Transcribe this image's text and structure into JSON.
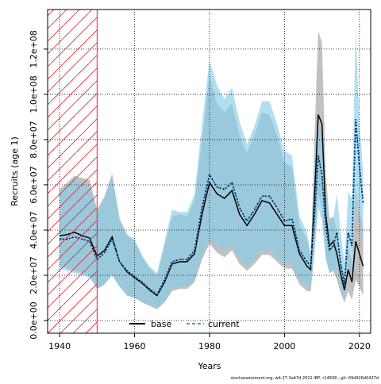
{
  "chart_data": {
    "type": "line",
    "x_label": "Years",
    "y_label": "Recruits (age 1)",
    "footnote": "stockassessment.org, wit.27.3a47d  2021 IBP, r14838 , git: 69d926d0437d",
    "x": [
      1940,
      1942,
      1944,
      1946,
      1948,
      1950,
      1952,
      1954,
      1956,
      1958,
      1960,
      1962,
      1964,
      1966,
      1968,
      1970,
      1972,
      1974,
      1976,
      1978,
      1980,
      1982,
      1984,
      1986,
      1988,
      1990,
      1992,
      1994,
      1996,
      1998,
      2000,
      2002,
      2004,
      2006,
      2007,
      2008,
      2009,
      2010,
      2011,
      2012,
      2013,
      2014,
      2015,
      2016,
      2017,
      2018,
      2019,
      2020,
      2021
    ],
    "xlim": [
      1936.8,
      2023
    ],
    "xticks": [
      1940,
      1960,
      1980,
      2000,
      2020
    ],
    "ylim": [
      -5600000.0,
      137500000.0
    ],
    "yticks": [
      {
        "value": 0,
        "label": "0.0e+00"
      },
      {
        "value": 20000000.0,
        "label": "2.0e+07"
      },
      {
        "value": 40000000.0,
        "label": "4.0e+07"
      },
      {
        "value": 60000000.0,
        "label": "6.0e+07"
      },
      {
        "value": 80000000.0,
        "label": "8.0e+07"
      },
      {
        "value": 100000000.0,
        "label": "1.0e+08"
      },
      {
        "value": 120000000.0,
        "label": "1.2e+08"
      }
    ],
    "grid": true,
    "highlight_range": [
      1936.8,
      1950
    ],
    "highlight_color": "#e8202a",
    "legend": "bottom",
    "series": [
      {
        "name": "base",
        "color": "#000000",
        "band_color": "#a0a0a0",
        "dash": "solid",
        "values": [
          37500000.0,
          38000000.0,
          39000000.0,
          37500000.0,
          36500000.0,
          28500000.0,
          31000000.0,
          37000000.0,
          26000000.0,
          21500000.0,
          19000000.0,
          16500000.0,
          13500000.0,
          11000000.0,
          17000000.0,
          25000000.0,
          26000000.0,
          26000000.0,
          29500000.0,
          47000000.0,
          61000000.0,
          56000000.0,
          54000000.0,
          57500000.0,
          47000000.0,
          42000000.0,
          47000000.0,
          53000000.0,
          52000000.0,
          47000000.0,
          42000000.0,
          42000000.0,
          29500000.0,
          24000000.0,
          22500000.0,
          54000000.0,
          91000000.0,
          87000000.0,
          47000000.0,
          33000000.0,
          35000000.0,
          29500000.0,
          20500000.0,
          13500000.0,
          22500000.0,
          17000000.0,
          35000000.0,
          29500000.0,
          24000000.0
        ],
        "upper": [
          58000000.0,
          61000000.0,
          64000000.0,
          63000000.0,
          62000000.0,
          49000000.0,
          55000000.0,
          65000000.0,
          45000000.0,
          38000000.0,
          35000000.0,
          28000000.0,
          23000000.0,
          20000000.0,
          33000000.0,
          46000000.0,
          47000000.0,
          46000000.0,
          53000000.0,
          80000000.0,
          108000000.0,
          96000000.0,
          92000000.0,
          96000000.0,
          82000000.0,
          74000000.0,
          82000000.0,
          92000000.0,
          91000000.0,
          82000000.0,
          70000000.0,
          68000000.0,
          42000000.0,
          36000000.0,
          28000000.0,
          80000000.0,
          128000000.0,
          123000000.0,
          65000000.0,
          45000000.0,
          46000000.0,
          40000000.0,
          28000000.0,
          20000000.0,
          32000000.0,
          26000000.0,
          58000000.0,
          48000000.0,
          40000000.0
        ],
        "lower": [
          24000000.0,
          23000000.0,
          22000000.0,
          21000000.0,
          20000000.0,
          14000000.0,
          16000000.0,
          20000000.0,
          15000000.0,
          11000000.0,
          10000000.0,
          8000000.0,
          6500000.0,
          5000000.0,
          8000000.0,
          13000000.0,
          14000000.0,
          14000000.0,
          17000000.0,
          27000000.0,
          34000000.0,
          30000000.0,
          28000000.0,
          31000000.0,
          25000000.0,
          22000000.0,
          25000000.0,
          29000000.0,
          29000000.0,
          26000000.0,
          23000000.0,
          23000000.0,
          16000000.0,
          13000000.0,
          13000000.0,
          30000000.0,
          56000000.0,
          50000000.0,
          29000000.0,
          21000000.0,
          22000000.0,
          18000000.0,
          12000000.0,
          8000000.0,
          13000000.0,
          9000000.0,
          18000000.0,
          15000000.0,
          11000000.0
        ]
      },
      {
        "name": "current",
        "color": "#3d9be0",
        "band_color": "#87ceeb",
        "dash": "dashed",
        "values": [
          36000000.0,
          36000000.0,
          37000000.0,
          36000000.0,
          35000000.0,
          27000000.0,
          30000000.0,
          36000000.0,
          26000000.0,
          22000000.0,
          19500000.0,
          17000000.0,
          14000000.0,
          11500000.0,
          18000000.0,
          26000000.0,
          27000000.0,
          27000000.0,
          31000000.0,
          50000000.0,
          64500000.0,
          59000000.0,
          58000000.0,
          61000000.0,
          50000000.0,
          44000000.0,
          49000000.0,
          55000000.0,
          55000000.0,
          50000000.0,
          44000000.0,
          45000000.0,
          31000000.0,
          26000000.0,
          24000000.0,
          46000000.0,
          73000000.0,
          64500000.0,
          42000000.0,
          31000000.0,
          33000000.0,
          39000000.0,
          25000000.0,
          16000000.0,
          39000000.0,
          33000000.0,
          89000000.0,
          68000000.0,
          52000000.0
        ],
        "upper": [
          56000000.0,
          59000000.0,
          62000000.0,
          61000000.0,
          60000000.0,
          48000000.0,
          54000000.0,
          64000000.0,
          45000000.0,
          38000000.0,
          36000000.0,
          29000000.0,
          24000000.0,
          21000000.0,
          35000000.0,
          49000000.0,
          48000000.0,
          48000000.0,
          56000000.0,
          87000000.0,
          115000000.0,
          104000000.0,
          98000000.0,
          103000000.0,
          88000000.0,
          78000000.0,
          86000000.0,
          97000000.0,
          97000000.0,
          87000000.0,
          75000000.0,
          73000000.0,
          46000000.0,
          39000000.0,
          30000000.0,
          66000000.0,
          85000000.0,
          79000000.0,
          57000000.0,
          43000000.0,
          45000000.0,
          56000000.0,
          39000000.0,
          26000000.0,
          57000000.0,
          54000000.0,
          129000000.0,
          87000000.0,
          66000000.0
        ],
        "lower": [
          23000000.0,
          22000000.0,
          21000000.0,
          20000000.0,
          19000000.0,
          14000000.0,
          16000000.0,
          20000000.0,
          15000000.0,
          11000000.0,
          10000000.0,
          8500000.0,
          7000000.0,
          5500000.0,
          8500000.0,
          14000000.0,
          15000000.0,
          15000000.0,
          18000000.0,
          29000000.0,
          36000000.0,
          33000000.0,
          31000000.0,
          33000000.0,
          27000000.0,
          24000000.0,
          27000000.0,
          31000000.0,
          31000000.0,
          28000000.0,
          25000000.0,
          25000000.0,
          18000000.0,
          15000000.0,
          15000000.0,
          30000000.0,
          50000000.0,
          44000000.0,
          27000000.0,
          21000000.0,
          22000000.0,
          24000000.0,
          15000000.0,
          9000000.0,
          25000000.0,
          19000000.0,
          55000000.0,
          46000000.0,
          35000000.0
        ]
      }
    ]
  }
}
